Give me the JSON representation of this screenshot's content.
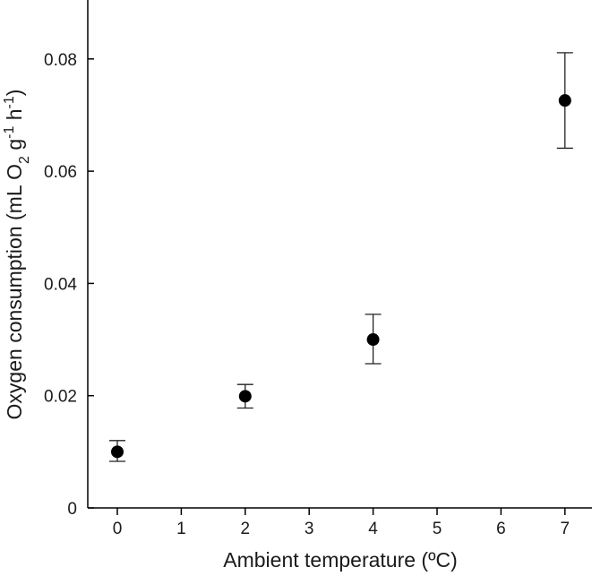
{
  "chart_data": {
    "type": "scatter",
    "title": "",
    "xlabel": "Ambient temperature (ºC)",
    "ylabel_parts": [
      "Oxygen consumption (mL O",
      "2",
      " g",
      "-1",
      " h",
      "-1",
      ")"
    ],
    "xlim": [
      -0.5,
      7.5
    ],
    "ylim": [
      0,
      0.09
    ],
    "x_ticks": [
      0,
      1,
      2,
      3,
      4,
      5,
      6,
      7
    ],
    "x_tick_labels": [
      "0",
      "1",
      "2",
      "3",
      "4",
      "5",
      "6",
      "7"
    ],
    "y_ticks": [
      0,
      0.02,
      0.04,
      0.06,
      0.08
    ],
    "y_tick_labels": [
      "0",
      "0.02",
      "0.04",
      "0.06",
      "0.08"
    ],
    "points": [
      {
        "x": 0,
        "y": 0.01,
        "err_low": 0.0083,
        "err_high": 0.012
      },
      {
        "x": 2,
        "y": 0.0199,
        "err_low": 0.0178,
        "err_high": 0.022
      },
      {
        "x": 4,
        "y": 0.03,
        "err_low": 0.0257,
        "err_high": 0.0345
      },
      {
        "x": 7,
        "y": 0.0726,
        "err_low": 0.0641,
        "err_high": 0.0811
      }
    ],
    "marker_color": "#000000",
    "grid": false,
    "legend": "none"
  }
}
